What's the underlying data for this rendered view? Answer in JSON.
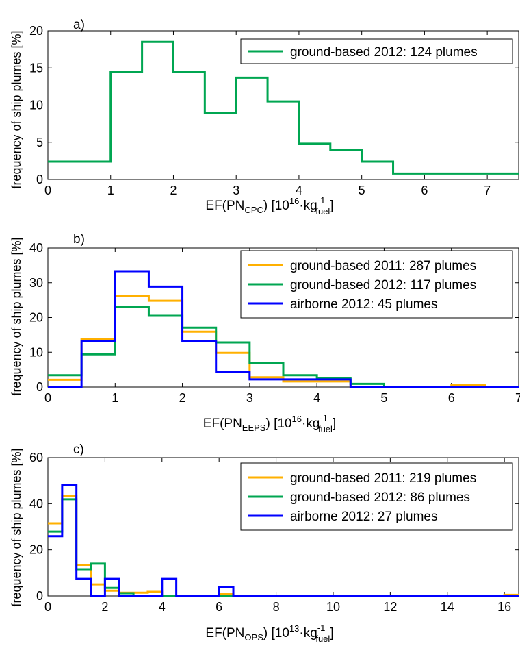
{
  "chart_data": [
    {
      "type": "line",
      "panel_label": "a)",
      "ylabel": "frequency of ship plumes [%]",
      "xlabel": {
        "main": "EF(PN",
        "sub": "CPC",
        "mid": ") [10",
        "sup": "16",
        "tail": "·kg",
        "sup2": "-1",
        "sub2": "fuel",
        "end": "]"
      },
      "xlim": [
        0,
        7.5
      ],
      "ylim": [
        0,
        20
      ],
      "xticks": [
        0,
        1,
        2,
        3,
        4,
        5,
        6,
        7
      ],
      "yticks": [
        0,
        5,
        10,
        15,
        20
      ],
      "grid": false,
      "legend_position": "top-right",
      "series": [
        {
          "name": "ground-based 2012: 124 plumes",
          "color": "#00a651",
          "bin_width": 0.5,
          "x": [
            0,
            0.5,
            1,
            1.5,
            2,
            2.5,
            3,
            3.5,
            4,
            4.5,
            5,
            5.5,
            6,
            6.5,
            7
          ],
          "values": [
            2.4,
            2.4,
            14.5,
            18.5,
            14.5,
            8.9,
            13.7,
            10.5,
            4.8,
            4.0,
            2.4,
            0.8,
            0.8,
            0.8,
            0.8
          ]
        }
      ]
    },
    {
      "type": "line",
      "panel_label": "b)",
      "ylabel": "frequency of ship plumes [%]",
      "xlabel": {
        "main": "EF(PN",
        "sub": "EEPS",
        "mid": ") [10",
        "sup": "16",
        "tail": "·kg",
        "sup2": "-1",
        "sub2": "fuel",
        "end": "]"
      },
      "xlim": [
        0,
        7
      ],
      "ylim": [
        0,
        40
      ],
      "xticks": [
        0,
        1,
        2,
        3,
        4,
        5,
        6,
        7
      ],
      "yticks": [
        0,
        10,
        20,
        30,
        40
      ],
      "grid": false,
      "legend_position": "top-right",
      "series": [
        {
          "name": "ground-based 2011: 287 plumes",
          "color": "#ffb000",
          "bin_width": 0.5,
          "x": [
            0,
            0.5,
            1,
            1.5,
            2,
            2.5,
            3,
            3.5,
            4,
            4.5,
            5,
            5.5,
            6,
            6.5
          ],
          "values": [
            2.1,
            13.8,
            26.2,
            24.8,
            15.9,
            9.8,
            2.8,
            1.6,
            1.6,
            0,
            0,
            0,
            0.7,
            0
          ]
        },
        {
          "name": "ground-based 2012: 117 plumes",
          "color": "#00a651",
          "bin_width": 0.5,
          "x": [
            0,
            0.5,
            1,
            1.5,
            2,
            2.5,
            3,
            3.5,
            4,
            4.5,
            5,
            5.5,
            6,
            6.5
          ],
          "values": [
            3.4,
            9.4,
            23.1,
            20.5,
            17.1,
            12.8,
            6.8,
            3.4,
            2.6,
            0.9,
            0,
            0,
            0,
            0
          ]
        },
        {
          "name": "airborne 2012: 45 plumes",
          "color": "#0000ff",
          "bin_width": 0.5,
          "x": [
            0,
            0.5,
            1,
            1.5,
            2,
            2.5,
            3,
            3.5,
            4,
            4.5,
            5,
            5.5,
            6,
            6.5
          ],
          "values": [
            0,
            13.3,
            33.3,
            28.9,
            13.3,
            4.4,
            2.2,
            2.2,
            2.2,
            0,
            0,
            0,
            0,
            0
          ]
        }
      ]
    },
    {
      "type": "line",
      "panel_label": "c)",
      "ylabel": "frequency of ship plumes [%]",
      "xlabel": {
        "main": "EF(PN",
        "sub": "OPS",
        "mid": ") [10",
        "sup": "13",
        "tail": "·kg",
        "sup2": "-1",
        "sub2": "fuel",
        "end": "]"
      },
      "xlim": [
        0,
        16.5
      ],
      "ylim": [
        0,
        60
      ],
      "xticks": [
        0,
        2,
        4,
        6,
        8,
        10,
        12,
        14,
        16
      ],
      "yticks": [
        0,
        20,
        40,
        60
      ],
      "grid": false,
      "legend_position": "top-right",
      "series": [
        {
          "name": "ground-based 2011: 219 plumes",
          "color": "#ffb000",
          "bin_width": 0.5,
          "x": [
            0,
            0.5,
            1,
            1.5,
            2,
            2.5,
            3,
            3.5,
            4,
            4.5,
            5,
            5.5,
            6,
            6.5,
            7,
            7.5,
            8,
            8.5,
            9,
            9.5,
            10,
            10.5,
            11,
            11.5,
            12,
            12.5,
            13,
            13.5,
            14,
            14.5,
            15,
            15.5,
            16
          ],
          "values": [
            31.5,
            43.4,
            13.2,
            5.0,
            2.3,
            1.4,
            1.4,
            1.8,
            0,
            0,
            0,
            0,
            0.9,
            0,
            0,
            0,
            0,
            0,
            0,
            0,
            0,
            0,
            0,
            0,
            0,
            0,
            0,
            0,
            0,
            0,
            0,
            0,
            0.5
          ]
        },
        {
          "name": "ground-based 2012: 86 plumes",
          "color": "#00a651",
          "bin_width": 0.5,
          "x": [
            0,
            0.5,
            1,
            1.5,
            2,
            2.5,
            3,
            3.5,
            4,
            4.5,
            5,
            5.5,
            6,
            6.5,
            7,
            7.5,
            8,
            8.5,
            9,
            9.5,
            10,
            10.5,
            11,
            11.5,
            12,
            12.5,
            13,
            13.5,
            14,
            14.5,
            15,
            15.5,
            16
          ],
          "values": [
            27.9,
            41.9,
            11.6,
            14.0,
            3.5,
            1.2,
            0,
            0,
            0,
            0,
            0,
            0,
            0,
            0,
            0,
            0,
            0,
            0,
            0,
            0,
            0,
            0,
            0,
            0,
            0,
            0,
            0,
            0,
            0,
            0,
            0,
            0,
            0
          ]
        },
        {
          "name": "airborne 2012: 27 plumes",
          "color": "#0000ff",
          "bin_width": 0.5,
          "x": [
            0,
            0.5,
            1,
            1.5,
            2,
            2.5,
            3,
            3.5,
            4,
            4.5,
            5,
            5.5,
            6,
            6.5,
            7,
            7.5,
            8,
            8.5,
            9,
            9.5,
            10,
            10.5,
            11,
            11.5,
            12,
            12.5,
            13,
            13.5,
            14,
            14.5,
            15,
            15.5,
            16
          ],
          "values": [
            25.9,
            48.1,
            7.4,
            0,
            7.4,
            0,
            0,
            0,
            7.4,
            0,
            0,
            0,
            3.7,
            0,
            0,
            0,
            0,
            0,
            0,
            0,
            0,
            0,
            0,
            0,
            0,
            0,
            0,
            0,
            0,
            0,
            0,
            0,
            0
          ]
        }
      ]
    }
  ]
}
